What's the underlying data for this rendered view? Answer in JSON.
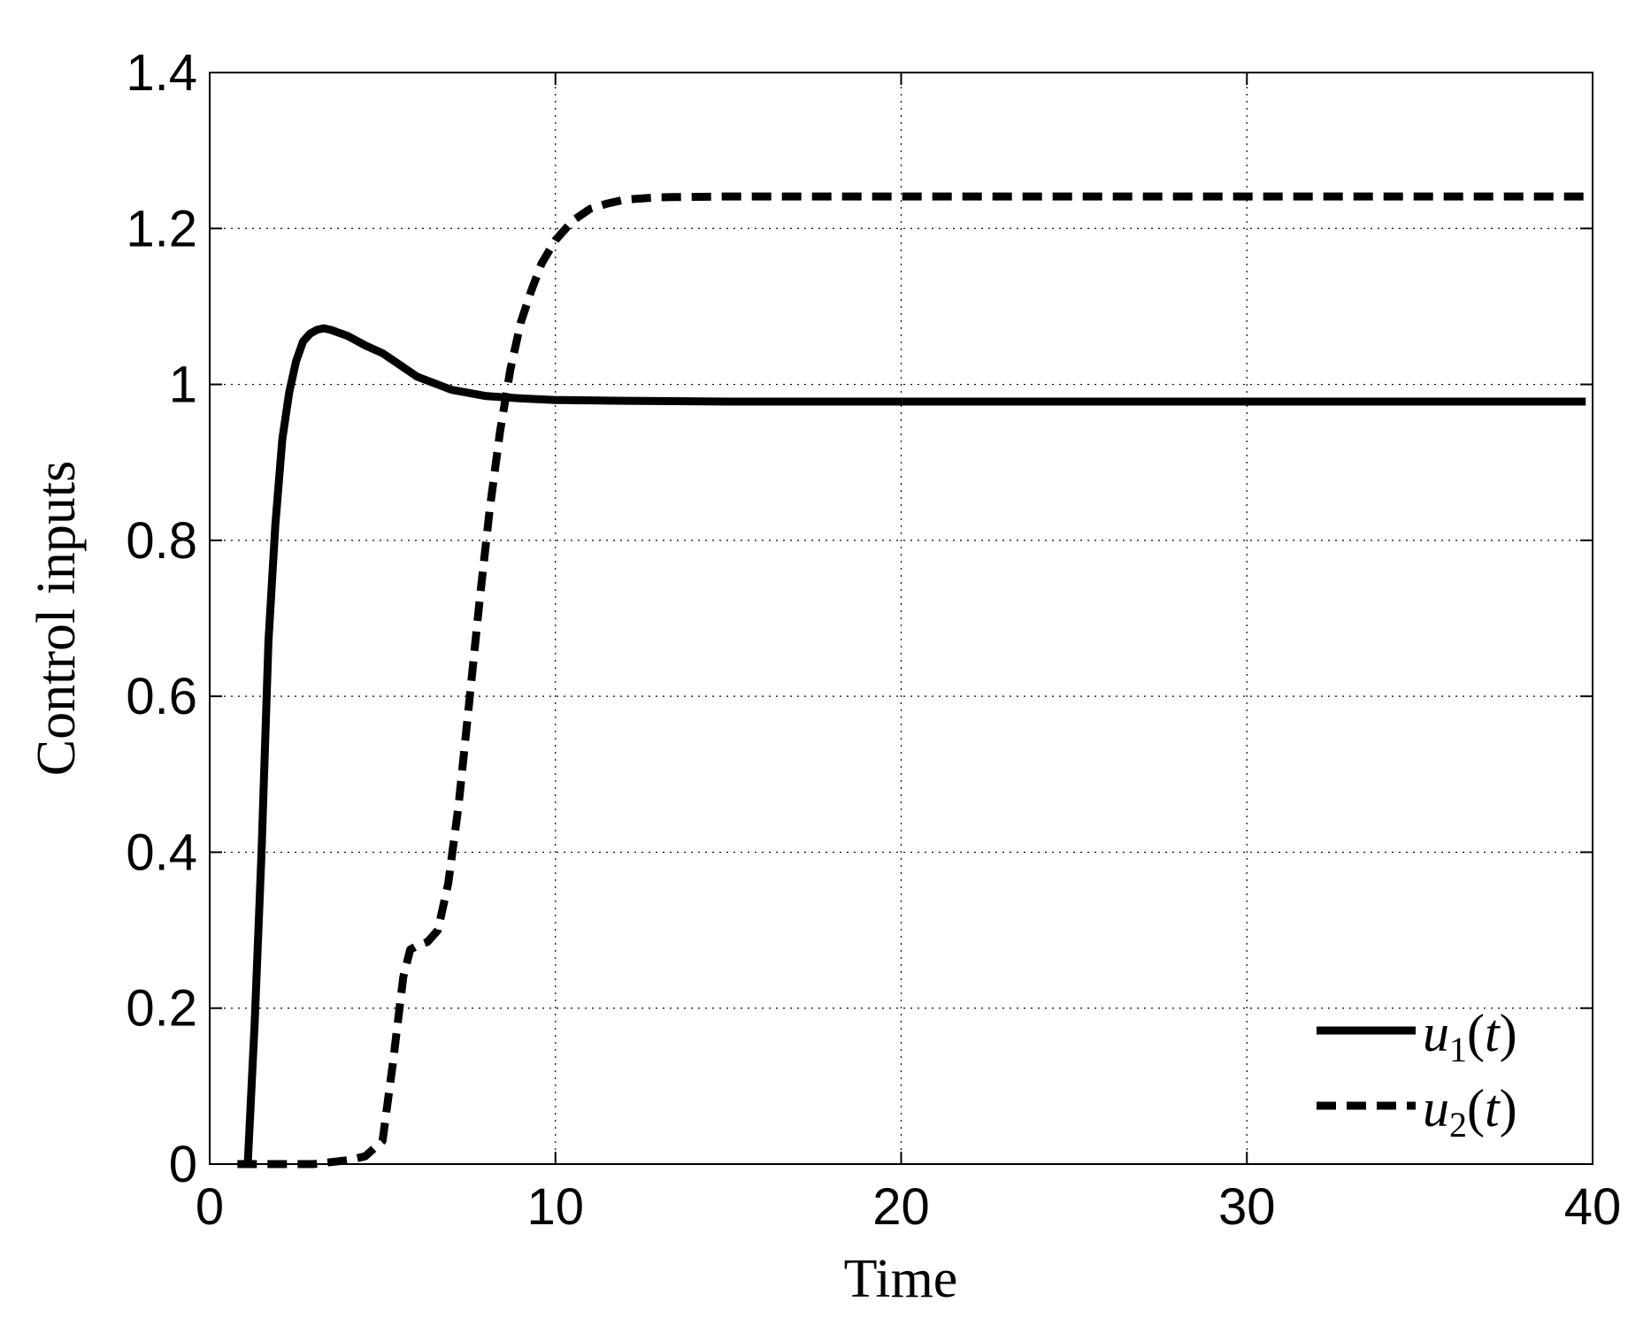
{
  "chart_data": {
    "type": "line",
    "xlabel": "Time",
    "ylabel": "Control inputs",
    "xlim": [
      0,
      40
    ],
    "ylim": [
      0,
      1.4
    ],
    "xticks": [
      0,
      10,
      20,
      30,
      40
    ],
    "xtick_labels": [
      "0",
      "10",
      "20",
      "30",
      "40"
    ],
    "yticks": [
      0,
      0.2,
      0.4,
      0.6,
      0.8,
      1,
      1.2,
      1.4
    ],
    "ytick_labels": [
      "0",
      "0.2",
      "0.4",
      "0.6",
      "0.8",
      "1",
      "1.2",
      "1.4"
    ],
    "grid": true,
    "legend_position": "bottom-right",
    "series": [
      {
        "name": "u1(t)",
        "legend_main": "u",
        "legend_sub": "1",
        "legend_tail": "(t)",
        "style": "solid",
        "color": "#000000",
        "x": [
          1.1,
          1.3,
          1.5,
          1.7,
          1.9,
          2.1,
          2.3,
          2.5,
          2.7,
          2.9,
          3.1,
          3.3,
          3.5,
          4.0,
          4.5,
          5.0,
          5.5,
          6.0,
          7.0,
          8.0,
          9.0,
          10.0,
          12.0,
          15.0,
          20.0,
          25.0,
          30.0,
          35.0,
          39.8
        ],
        "values": [
          0,
          0.18,
          0.4,
          0.67,
          0.82,
          0.93,
          0.99,
          1.03,
          1.055,
          1.065,
          1.07,
          1.072,
          1.07,
          1.062,
          1.05,
          1.04,
          1.025,
          1.01,
          0.993,
          0.985,
          0.982,
          0.98,
          0.979,
          0.978,
          0.978,
          0.978,
          0.978,
          0.978,
          0.978
        ]
      },
      {
        "name": "u2(t)",
        "legend_main": "u",
        "legend_sub": "2",
        "legend_tail": "(t)",
        "style": "dashed",
        "color": "#000000",
        "x": [
          0.8,
          2.0,
          3.0,
          4.0,
          4.5,
          5.0,
          5.3,
          5.6,
          5.8,
          6.0,
          6.3,
          6.6,
          6.9,
          7.2,
          7.5,
          7.8,
          8.1,
          8.4,
          8.7,
          9.0,
          9.3,
          9.6,
          10.0,
          10.5,
          11.0,
          11.5,
          12.0,
          13.0,
          15.0,
          20.0,
          30.0,
          39.8
        ],
        "values": [
          0,
          0,
          0,
          0.005,
          0.01,
          0.03,
          0.13,
          0.24,
          0.275,
          0.28,
          0.285,
          0.3,
          0.36,
          0.46,
          0.59,
          0.72,
          0.84,
          0.94,
          1.02,
          1.08,
          1.12,
          1.155,
          1.185,
          1.21,
          1.225,
          1.232,
          1.237,
          1.24,
          1.241,
          1.241,
          1.241,
          1.241
        ]
      }
    ]
  }
}
